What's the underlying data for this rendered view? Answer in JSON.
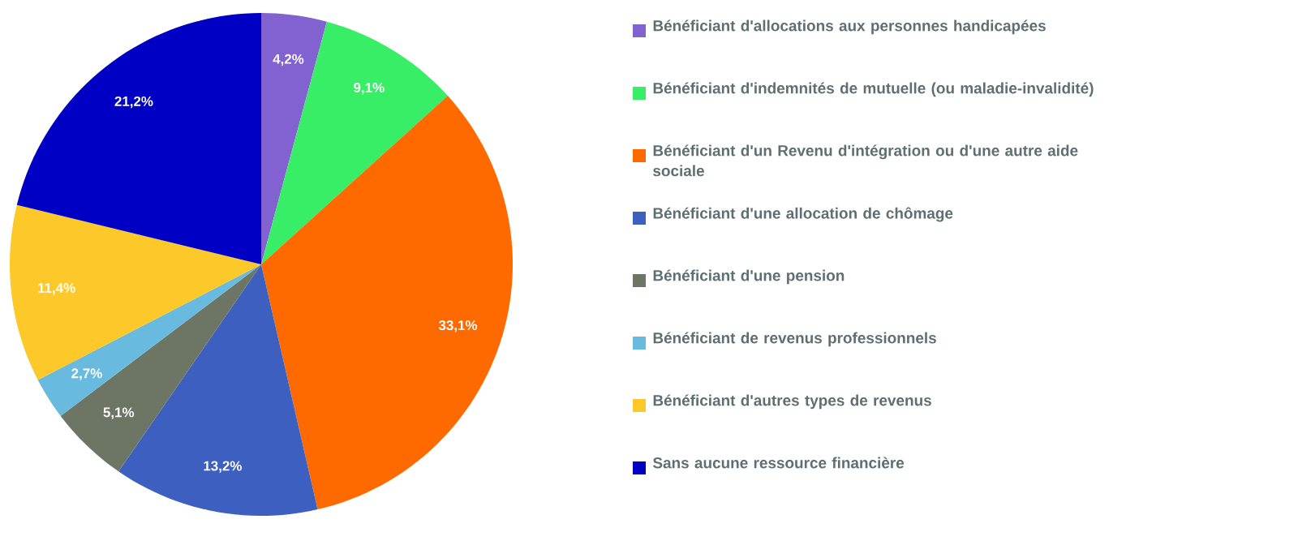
{
  "chart_data": {
    "type": "pie",
    "categories": [
      "Bénéficiant d'allocations aux personnes handicapées",
      "Bénéficiant d'indemnités de mutuelle (ou maladie-invalidité)",
      "Bénéficiant d'un Revenu d'intégration ou d'une autre aide sociale",
      "Bénéficiant d'une allocation de chômage",
      "Bénéficiant d'une pension",
      "Bénéficiant de revenus professionnels",
      "Bénéficiant d'autres types de revenus",
      "Sans aucune ressource financière"
    ],
    "values": [
      4.2,
      9.1,
      33.1,
      13.2,
      5.1,
      2.7,
      11.4,
      21.2
    ],
    "colors": [
      "#8261d0",
      "#38ee66",
      "#ff6a00",
      "#3d60c0",
      "#6d7565",
      "#68bade",
      "#fdc92a",
      "#0000c4"
    ],
    "value_labels": [
      "4,2%",
      "9,1%",
      "33,1%",
      "13,2%",
      "5,1%",
      "2,7%",
      "11,4%",
      "21,2%"
    ],
    "legend": "right"
  }
}
